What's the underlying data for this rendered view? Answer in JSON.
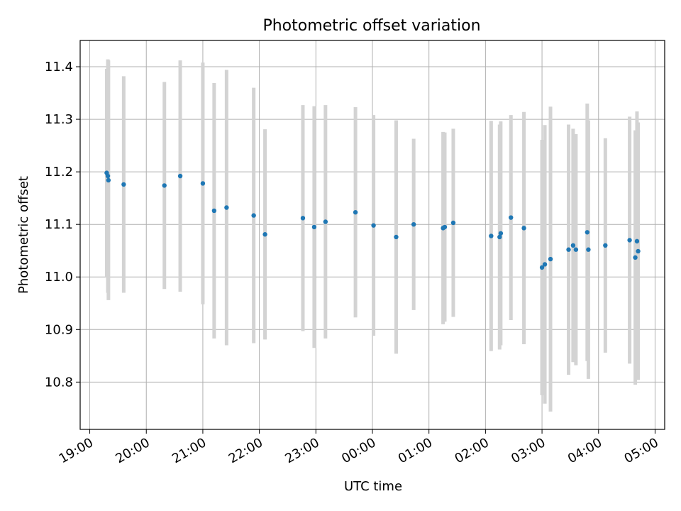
{
  "chart_data": {
    "type": "scatter",
    "title": "Photometric offset variation",
    "xlabel": "UTC time",
    "ylabel": "Photometric offset",
    "x_ticks": [
      "19:00",
      "20:00",
      "21:00",
      "22:00",
      "23:00",
      "00:00",
      "01:00",
      "02:00",
      "03:00",
      "04:00",
      "05:00"
    ],
    "x_tick_hours": [
      19,
      20,
      21,
      22,
      23,
      24,
      25,
      26,
      27,
      28,
      29
    ],
    "y_ticks": [
      "10.8",
      "10.9",
      "11.0",
      "11.1",
      "11.2",
      "11.3",
      "11.4"
    ],
    "y_tick_values": [
      10.8,
      10.9,
      11.0,
      11.1,
      11.2,
      11.3,
      11.4
    ],
    "xlim": [
      18.83,
      29.17
    ],
    "ylim": [
      10.71,
      11.45
    ],
    "grid": true,
    "marker_color": "#1f77b4",
    "errorbar_color": "#d3d3d3",
    "points": [
      {
        "x": 19.3,
        "y": 11.198,
        "err": 0.198
      },
      {
        "x": 19.32,
        "y": 11.192,
        "err": 0.222
      },
      {
        "x": 19.33,
        "y": 11.184,
        "err": 0.228
      },
      {
        "x": 19.6,
        "y": 11.176,
        "err": 0.206
      },
      {
        "x": 20.32,
        "y": 11.174,
        "err": 0.197
      },
      {
        "x": 20.6,
        "y": 11.192,
        "err": 0.22
      },
      {
        "x": 21.0,
        "y": 11.178,
        "err": 0.23
      },
      {
        "x": 21.2,
        "y": 11.126,
        "err": 0.243
      },
      {
        "x": 21.42,
        "y": 11.132,
        "err": 0.262
      },
      {
        "x": 21.9,
        "y": 11.117,
        "err": 0.243
      },
      {
        "x": 22.1,
        "y": 11.081,
        "err": 0.2
      },
      {
        "x": 22.77,
        "y": 11.112,
        "err": 0.215
      },
      {
        "x": 22.97,
        "y": 11.095,
        "err": 0.23
      },
      {
        "x": 23.17,
        "y": 11.105,
        "err": 0.222
      },
      {
        "x": 23.7,
        "y": 11.123,
        "err": 0.2
      },
      {
        "x": 24.02,
        "y": 11.098,
        "err": 0.21
      },
      {
        "x": 24.42,
        "y": 11.076,
        "err": 0.222
      },
      {
        "x": 24.73,
        "y": 11.1,
        "err": 0.163
      },
      {
        "x": 25.25,
        "y": 11.093,
        "err": 0.183
      },
      {
        "x": 25.28,
        "y": 11.095,
        "err": 0.18
      },
      {
        "x": 25.43,
        "y": 11.103,
        "err": 0.179
      },
      {
        "x": 26.1,
        "y": 11.078,
        "err": 0.219
      },
      {
        "x": 26.25,
        "y": 11.076,
        "err": 0.214
      },
      {
        "x": 26.27,
        "y": 11.083,
        "err": 0.213
      },
      {
        "x": 26.45,
        "y": 11.113,
        "err": 0.195
      },
      {
        "x": 26.68,
        "y": 11.093,
        "err": 0.221
      },
      {
        "x": 27.0,
        "y": 11.018,
        "err": 0.243
      },
      {
        "x": 27.05,
        "y": 11.024,
        "err": 0.265
      },
      {
        "x": 27.15,
        "y": 11.034,
        "err": 0.29
      },
      {
        "x": 27.47,
        "y": 11.052,
        "err": 0.238
      },
      {
        "x": 27.55,
        "y": 11.06,
        "err": 0.222
      },
      {
        "x": 27.6,
        "y": 11.052,
        "err": 0.22
      },
      {
        "x": 27.8,
        "y": 11.085,
        "err": 0.245
      },
      {
        "x": 27.82,
        "y": 11.052,
        "err": 0.246
      },
      {
        "x": 28.12,
        "y": 11.06,
        "err": 0.204
      },
      {
        "x": 28.55,
        "y": 11.07,
        "err": 0.235
      },
      {
        "x": 28.65,
        "y": 11.037,
        "err": 0.242
      },
      {
        "x": 28.68,
        "y": 11.068,
        "err": 0.247
      },
      {
        "x": 28.7,
        "y": 11.049,
        "err": 0.245
      }
    ]
  }
}
